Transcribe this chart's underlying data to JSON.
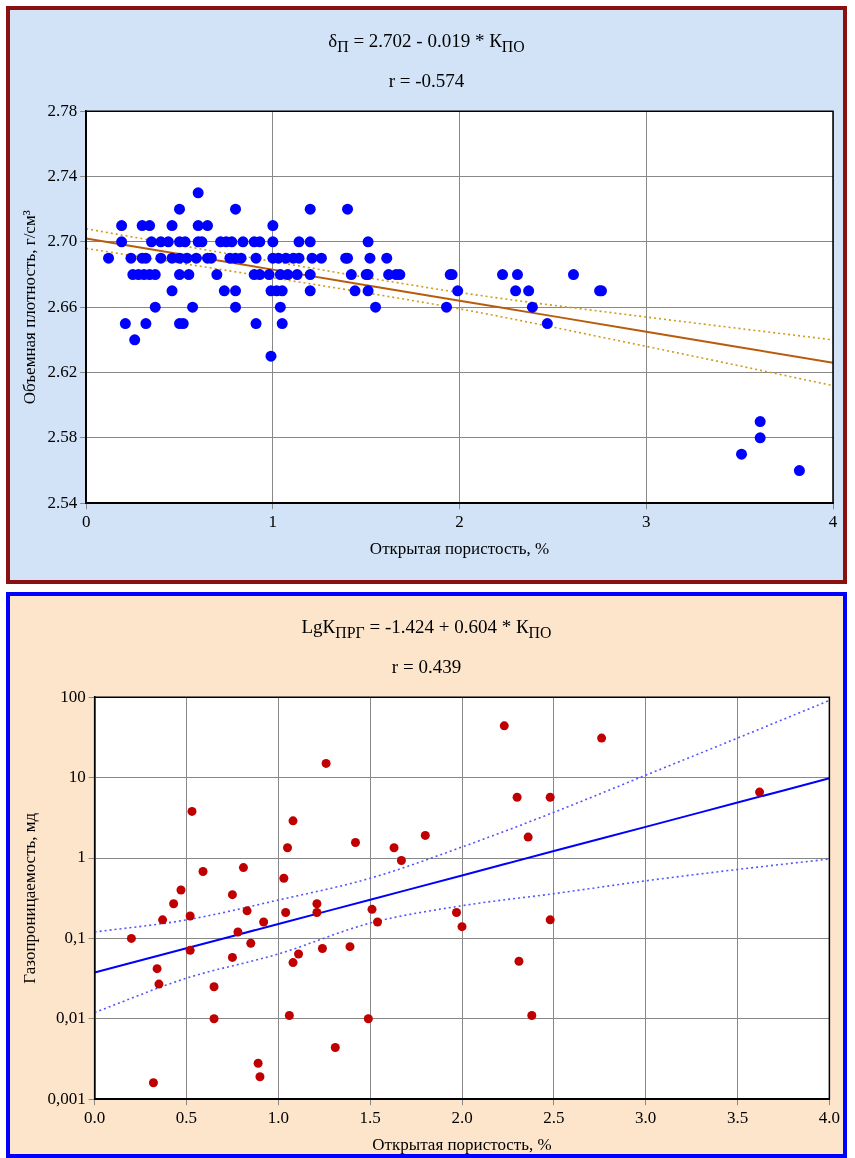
{
  "chart_data": [
    {
      "type": "scatter",
      "title": "δ$_{П}$ = 2.702 - 0.019 * К$_{ПО}$",
      "subtitle": "r = -0.574",
      "xlabel": "Открытая пористость, %",
      "ylabel": "Объемная плотность, г/см³",
      "xlim": [
        0,
        4
      ],
      "xticks": [
        0,
        1,
        2,
        3,
        4
      ],
      "ylim": [
        2.54,
        2.78
      ],
      "yticks": [
        2.54,
        2.58,
        2.62,
        2.66,
        {
          "value": 2.7,
          "label": "2.70"
        },
        2.74,
        2.78
      ],
      "grid": true,
      "series": [
        {
          "marker": "circle",
          "color": "#0000ff",
          "x": [
            0.6,
            0.5,
            0.8,
            1.2,
            1.4,
            0.19,
            0.3,
            0.34,
            0.46,
            0.6,
            0.65,
            1.0,
            0.19,
            0.35,
            0.4,
            0.44,
            0.5,
            0.53,
            0.6,
            0.62,
            0.72,
            0.75,
            0.78,
            0.84,
            0.9,
            0.93,
            1.0,
            1.14,
            1.2,
            1.51,
            0.12,
            0.24,
            0.3,
            0.32,
            0.4,
            0.46,
            0.5,
            0.54,
            0.59,
            0.65,
            0.67,
            0.77,
            0.8,
            0.83,
            0.91,
            1.0,
            1.03,
            1.07,
            1.11,
            1.14,
            1.21,
            1.26,
            1.39,
            1.4,
            1.52,
            1.61,
            0.25,
            0.28,
            0.31,
            0.34,
            0.37,
            0.5,
            0.55,
            0.7,
            0.9,
            0.93,
            0.98,
            1.04,
            1.08,
            1.13,
            1.2,
            1.42,
            1.5,
            1.51,
            1.62,
            1.66,
            1.68,
            1.95,
            1.96,
            2.23,
            2.31,
            2.61,
            0.46,
            0.74,
            0.8,
            0.99,
            1.02,
            1.05,
            1.2,
            1.44,
            1.51,
            1.99,
            2.3,
            2.37,
            2.75,
            2.76,
            0.37,
            0.57,
            0.8,
            1.04,
            1.55,
            1.93,
            2.39,
            0.21,
            0.32,
            0.5,
            0.52,
            0.91,
            1.05,
            2.47,
            0.26,
            0.99,
            3.61,
            3.61,
            3.51,
            3.82
          ],
          "values": [
            2.73,
            2.72,
            2.72,
            2.72,
            2.72,
            2.71,
            2.71,
            2.71,
            2.71,
            2.71,
            2.71,
            2.71,
            2.7,
            2.7,
            2.7,
            2.7,
            2.7,
            2.7,
            2.7,
            2.7,
            2.7,
            2.7,
            2.7,
            2.7,
            2.7,
            2.7,
            2.7,
            2.7,
            2.7,
            2.7,
            2.69,
            2.69,
            2.69,
            2.69,
            2.69,
            2.69,
            2.69,
            2.69,
            2.69,
            2.69,
            2.69,
            2.69,
            2.69,
            2.69,
            2.69,
            2.69,
            2.69,
            2.69,
            2.69,
            2.69,
            2.69,
            2.69,
            2.69,
            2.69,
            2.69,
            2.69,
            2.68,
            2.68,
            2.68,
            2.68,
            2.68,
            2.68,
            2.68,
            2.68,
            2.68,
            2.68,
            2.68,
            2.68,
            2.68,
            2.68,
            2.68,
            2.68,
            2.68,
            2.68,
            2.68,
            2.68,
            2.68,
            2.68,
            2.68,
            2.68,
            2.68,
            2.68,
            2.67,
            2.67,
            2.67,
            2.67,
            2.67,
            2.67,
            2.67,
            2.67,
            2.67,
            2.67,
            2.67,
            2.67,
            2.67,
            2.67,
            2.66,
            2.66,
            2.66,
            2.66,
            2.66,
            2.66,
            2.66,
            2.65,
            2.65,
            2.65,
            2.65,
            2.65,
            2.65,
            2.65,
            2.64,
            2.63,
            2.59,
            2.58,
            2.57,
            2.56
          ]
        },
        {
          "type": "line",
          "marker": "none",
          "line_style": "solid",
          "color": "#b85c0c",
          "x": [
            0,
            1,
            2,
            3,
            4
          ],
          "values": [
            2.702,
            2.683,
            2.664,
            2.645,
            2.626
          ]
        },
        {
          "type": "line",
          "marker": "none",
          "line_style": "dotted",
          "color": "#d09a1a",
          "x": [
            0,
            1,
            2,
            3,
            4
          ],
          "values": [
            2.708,
            2.688,
            2.669,
            2.654,
            2.64
          ]
        },
        {
          "type": "line",
          "marker": "none",
          "line_style": "dotted",
          "color": "#d09a1a",
          "x": [
            0,
            1,
            2,
            3,
            4
          ],
          "values": [
            2.696,
            2.678,
            2.659,
            2.636,
            2.612
          ]
        }
      ]
    },
    {
      "type": "scatter",
      "title": "LgК$_{ПРГ}$ = -1.424 + 0.604 * К$_{ПО}$",
      "subtitle": "r = 0.439",
      "xlabel": "Открытая пористость, %",
      "ylabel": "Газопроницаемость, мд",
      "log": "y",
      "xlim": [
        0,
        4
      ],
      "xticks": [
        {
          "value": 0,
          "label": "0.0"
        },
        0.5,
        {
          "value": 1,
          "label": "1.0"
        },
        1.5,
        {
          "value": 2,
          "label": "2.0"
        },
        2.5,
        {
          "value": 3,
          "label": "3.0"
        },
        3.5,
        {
          "value": 4,
          "label": "4.0"
        }
      ],
      "ylim": [
        0.001,
        100
      ],
      "yticks": [
        {
          "value": 0.001,
          "label": "0,001"
        },
        {
          "value": 0.01,
          "label": "0,01"
        },
        {
          "value": 0.1,
          "label": "0,1"
        },
        1,
        10,
        100
      ],
      "grid": true,
      "series": [
        {
          "marker": "circle",
          "color": "#c00000",
          "x": [
            0.2,
            0.32,
            0.34,
            0.35,
            0.37,
            0.43,
            0.47,
            0.52,
            0.52,
            0.53,
            0.59,
            0.65,
            0.65,
            0.75,
            0.75,
            0.78,
            0.81,
            0.83,
            0.85,
            0.89,
            0.9,
            0.92,
            1.03,
            1.04,
            1.05,
            1.06,
            1.08,
            1.08,
            1.11,
            1.21,
            1.21,
            1.24,
            1.26,
            1.31,
            1.39,
            1.42,
            1.49,
            1.51,
            1.54,
            1.63,
            1.67,
            1.8,
            1.97,
            2.0,
            2.23,
            2.3,
            2.31,
            2.36,
            2.38,
            2.48,
            2.48,
            2.76,
            3.62
          ],
          "values": [
            0.1,
            0.0016,
            0.042,
            0.027,
            0.17,
            0.27,
            0.4,
            0.19,
            0.071,
            3.8,
            0.68,
            0.025,
            0.01,
            0.35,
            0.058,
            0.12,
            0.76,
            0.22,
            0.087,
            0.0028,
            0.0019,
            0.16,
            0.56,
            0.21,
            1.34,
            0.011,
            2.9,
            0.05,
            0.064,
            0.27,
            0.21,
            0.075,
            15,
            0.0044,
            0.079,
            1.56,
            0.01,
            0.23,
            0.16,
            1.34,
            0.93,
            1.91,
            0.21,
            0.14,
            44,
            5.7,
            0.052,
            1.82,
            0.011,
            5.7,
            0.17,
            31,
            6.6
          ]
        },
        {
          "type": "line",
          "marker": "none",
          "line_style": "solid",
          "color": "#0000ff",
          "x": [
            0,
            0.5,
            1,
            1.5,
            2,
            2.5,
            3,
            3.5,
            4
          ],
          "values": [
            0.0377,
            0.0756,
            0.151,
            0.303,
            0.607,
            1.22,
            2.44,
            4.89,
            9.8
          ]
        },
        {
          "type": "line",
          "marker": "none",
          "line_style": "dotted",
          "color": "#5555ff",
          "x": [
            0,
            0.5,
            1,
            1.5,
            2,
            2.5,
            3,
            3.5,
            4
          ],
          "values": [
            0.12,
            0.17,
            0.3,
            0.56,
            1.37,
            3.7,
            10.7,
            31,
            91
          ]
        },
        {
          "type": "line",
          "marker": "none",
          "line_style": "dotted",
          "color": "#5555ff",
          "x": [
            0,
            0.5,
            1,
            1.5,
            2,
            2.5,
            3,
            3.5,
            4
          ],
          "values": [
            0.012,
            0.032,
            0.064,
            0.155,
            0.255,
            0.36,
            0.52,
            0.72,
            0.97
          ]
        }
      ]
    }
  ]
}
